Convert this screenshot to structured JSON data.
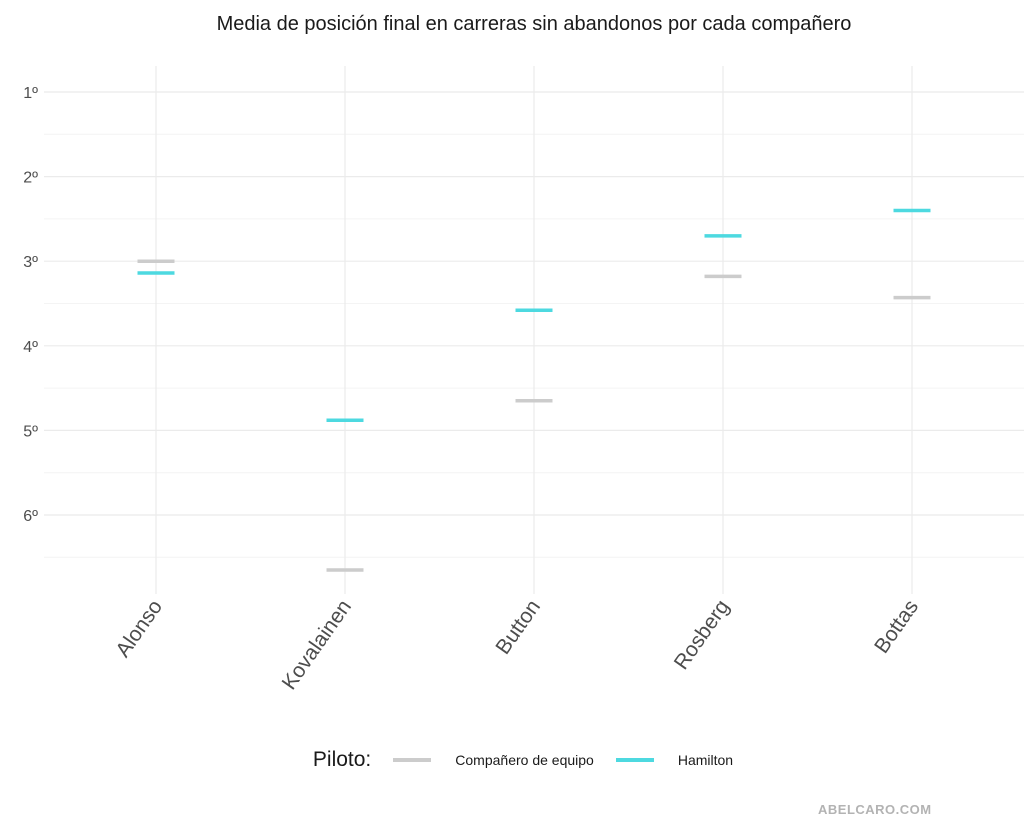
{
  "chart_data": {
    "type": "errorbar",
    "title": "Media de posición final en carreras sin abandonos por cada compañero",
    "xlabel": "",
    "ylabel": "",
    "categories": [
      "Alonso",
      "Kovalainen",
      "Button",
      "Rosberg",
      "Bottas"
    ],
    "series": [
      {
        "name": "Compañero de equipo",
        "color": "#cccccc",
        "values": [
          3.0,
          6.65,
          4.65,
          3.18,
          3.43
        ]
      },
      {
        "name": "Hamilton",
        "color": "#4dd9e0",
        "values": [
          3.14,
          4.88,
          3.58,
          2.7,
          2.4
        ]
      }
    ],
    "ylim": [
      6.9,
      0.7
    ],
    "y_ticks": [
      1,
      2,
      3,
      4,
      5,
      6
    ],
    "y_tick_labels": [
      "1º",
      "2º",
      "3º",
      "4º",
      "5º",
      "6º"
    ],
    "y_reversed": true,
    "grid": true,
    "legend_position": "bottom",
    "legend_title": "Piloto:"
  },
  "watermark": "ABELCARO.COM"
}
